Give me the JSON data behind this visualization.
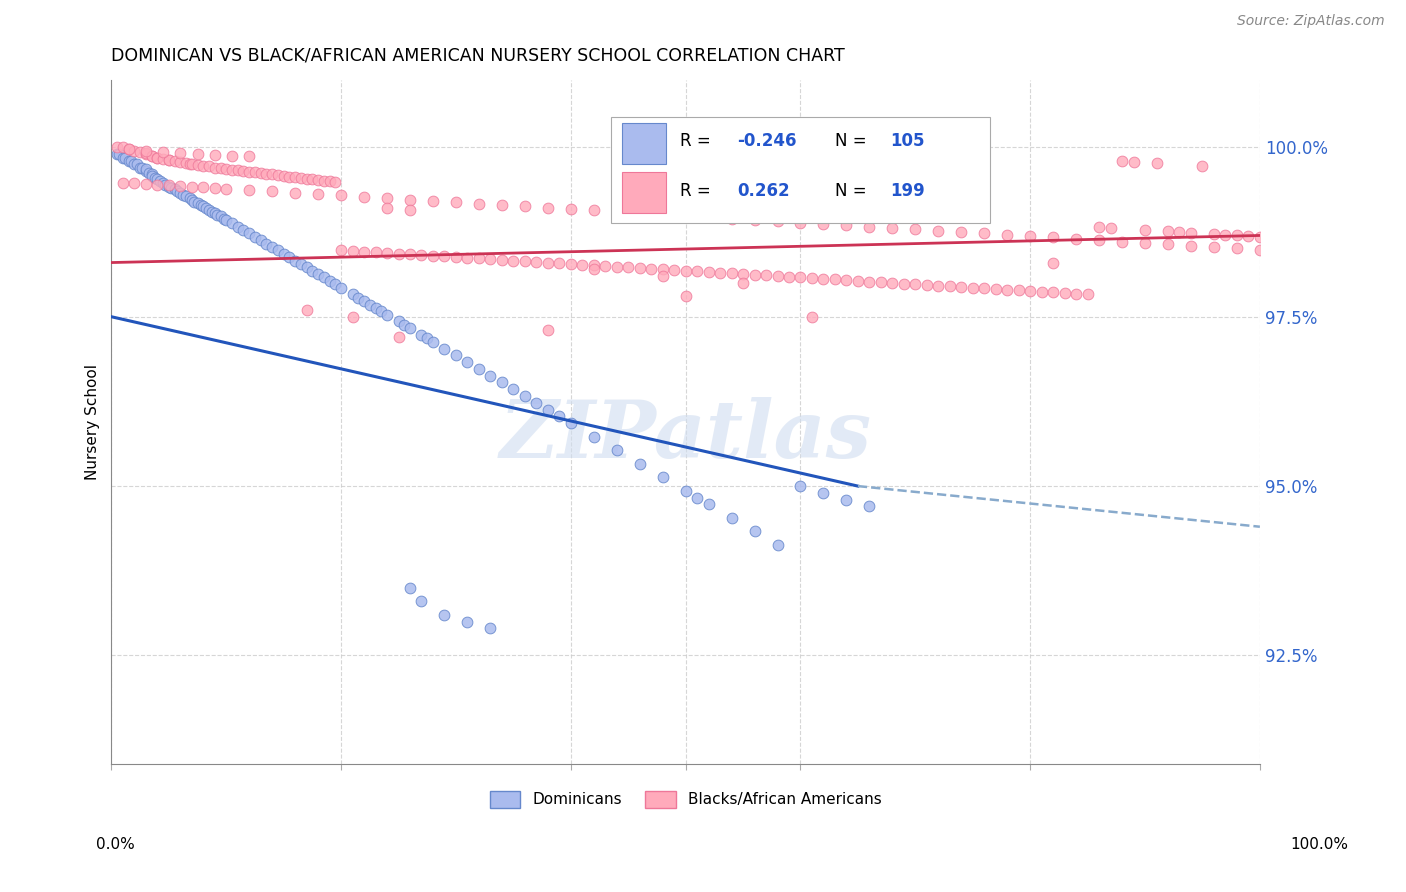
{
  "title": "DOMINICAN VS BLACK/AFRICAN AMERICAN NURSERY SCHOOL CORRELATION CHART",
  "source": "Source: ZipAtlas.com",
  "ylabel": "Nursery School",
  "watermark": "ZIPatlas",
  "blue_scatter_color": "#aabbee",
  "blue_scatter_edge": "#6688cc",
  "pink_scatter_color": "#ffaabb",
  "pink_scatter_edge": "#ee7799",
  "blue_line_color": "#2255bb",
  "blue_dash_color": "#88aacc",
  "pink_line_color": "#cc3355",
  "ytick_color": "#3366cc",
  "xtick_label_color": "#000000",
  "grid_color": "#cccccc",
  "legend_r_color": "#000000",
  "legend_val_color": "#2255cc",
  "blue_line_start_y": 0.975,
  "blue_line_end_solid_x": 0.65,
  "blue_line_end_y": 0.95,
  "blue_line_end_dashed_y": 0.944,
  "pink_line_start_y": 0.983,
  "pink_line_end_y": 0.987,
  "xmin": 0.0,
  "xmax": 1.0,
  "ymin": 0.909,
  "ymax": 1.01,
  "ytick_values": [
    0.925,
    0.95,
    0.975,
    1.0
  ],
  "ytick_labels": [
    "92.5%",
    "95.0%",
    "97.5%",
    "100.0%"
  ],
  "blue_x": [
    0.005,
    0.007,
    0.01,
    0.012,
    0.015,
    0.017,
    0.02,
    0.022,
    0.025,
    0.027,
    0.03,
    0.03,
    0.033,
    0.035,
    0.035,
    0.038,
    0.04,
    0.042,
    0.045,
    0.047,
    0.05,
    0.052,
    0.055,
    0.057,
    0.06,
    0.062,
    0.065,
    0.068,
    0.07,
    0.072,
    0.075,
    0.078,
    0.08,
    0.082,
    0.085,
    0.088,
    0.09,
    0.092,
    0.095,
    0.098,
    0.1,
    0.105,
    0.11,
    0.115,
    0.12,
    0.125,
    0.13,
    0.135,
    0.14,
    0.145,
    0.15,
    0.155,
    0.16,
    0.165,
    0.17,
    0.175,
    0.18,
    0.185,
    0.19,
    0.195,
    0.2,
    0.21,
    0.215,
    0.22,
    0.225,
    0.23,
    0.235,
    0.24,
    0.25,
    0.255,
    0.26,
    0.27,
    0.275,
    0.28,
    0.29,
    0.3,
    0.31,
    0.32,
    0.33,
    0.34,
    0.35,
    0.36,
    0.37,
    0.38,
    0.39,
    0.4,
    0.42,
    0.44,
    0.46,
    0.48,
    0.5,
    0.51,
    0.52,
    0.54,
    0.56,
    0.58,
    0.6,
    0.62,
    0.64,
    0.66,
    0.26,
    0.27,
    0.29,
    0.31,
    0.33
  ],
  "blue_y": [
    0.999,
    0.999,
    0.9985,
    0.9985,
    0.998,
    0.998,
    0.9975,
    0.9975,
    0.997,
    0.997,
    0.9965,
    0.9968,
    0.9962,
    0.996,
    0.9958,
    0.9955,
    0.9953,
    0.995,
    0.9948,
    0.9945,
    0.9942,
    0.994,
    0.9938,
    0.9935,
    0.9933,
    0.993,
    0.9928,
    0.9925,
    0.9923,
    0.992,
    0.9918,
    0.9915,
    0.9913,
    0.991,
    0.9908,
    0.9905,
    0.9903,
    0.99,
    0.9898,
    0.9895,
    0.9893,
    0.9888,
    0.9883,
    0.9878,
    0.9873,
    0.9868,
    0.9863,
    0.9858,
    0.9853,
    0.9848,
    0.9843,
    0.9838,
    0.9833,
    0.9828,
    0.9823,
    0.9818,
    0.9813,
    0.9808,
    0.9803,
    0.9798,
    0.9793,
    0.9783,
    0.9778,
    0.9773,
    0.9768,
    0.9763,
    0.9758,
    0.9753,
    0.9743,
    0.9738,
    0.9733,
    0.9723,
    0.9718,
    0.9713,
    0.9703,
    0.9693,
    0.9683,
    0.9673,
    0.9663,
    0.9653,
    0.9643,
    0.9633,
    0.9623,
    0.9613,
    0.9603,
    0.9593,
    0.9573,
    0.9553,
    0.9533,
    0.9513,
    0.9493,
    0.9483,
    0.9473,
    0.9453,
    0.9433,
    0.9413,
    0.95,
    0.949,
    0.948,
    0.947,
    0.935,
    0.933,
    0.931,
    0.93,
    0.929
  ],
  "pink_x": [
    0.005,
    0.01,
    0.015,
    0.02,
    0.025,
    0.03,
    0.03,
    0.035,
    0.035,
    0.04,
    0.04,
    0.045,
    0.05,
    0.05,
    0.055,
    0.06,
    0.065,
    0.068,
    0.07,
    0.075,
    0.08,
    0.085,
    0.09,
    0.095,
    0.1,
    0.105,
    0.11,
    0.115,
    0.12,
    0.125,
    0.13,
    0.135,
    0.14,
    0.145,
    0.15,
    0.155,
    0.16,
    0.165,
    0.17,
    0.175,
    0.18,
    0.185,
    0.19,
    0.195,
    0.2,
    0.21,
    0.22,
    0.23,
    0.24,
    0.25,
    0.26,
    0.27,
    0.28,
    0.29,
    0.3,
    0.31,
    0.32,
    0.33,
    0.34,
    0.35,
    0.36,
    0.37,
    0.38,
    0.39,
    0.4,
    0.41,
    0.42,
    0.43,
    0.44,
    0.45,
    0.46,
    0.47,
    0.48,
    0.49,
    0.5,
    0.51,
    0.52,
    0.53,
    0.54,
    0.55,
    0.56,
    0.57,
    0.58,
    0.59,
    0.6,
    0.61,
    0.62,
    0.63,
    0.64,
    0.65,
    0.66,
    0.67,
    0.68,
    0.69,
    0.7,
    0.71,
    0.72,
    0.73,
    0.74,
    0.75,
    0.76,
    0.77,
    0.78,
    0.79,
    0.8,
    0.81,
    0.82,
    0.83,
    0.84,
    0.85,
    0.86,
    0.87,
    0.88,
    0.89,
    0.9,
    0.91,
    0.92,
    0.93,
    0.94,
    0.95,
    0.96,
    0.97,
    0.98,
    0.99,
    1.0,
    0.01,
    0.02,
    0.03,
    0.04,
    0.05,
    0.06,
    0.07,
    0.08,
    0.09,
    0.1,
    0.12,
    0.14,
    0.16,
    0.18,
    0.2,
    0.22,
    0.24,
    0.26,
    0.28,
    0.3,
    0.32,
    0.34,
    0.36,
    0.38,
    0.4,
    0.42,
    0.44,
    0.46,
    0.48,
    0.5,
    0.52,
    0.54,
    0.56,
    0.58,
    0.6,
    0.62,
    0.64,
    0.66,
    0.68,
    0.7,
    0.72,
    0.74,
    0.76,
    0.78,
    0.8,
    0.82,
    0.84,
    0.86,
    0.88,
    0.9,
    0.92,
    0.94,
    0.96,
    0.98,
    1.0,
    0.015,
    0.03,
    0.045,
    0.06,
    0.075,
    0.09,
    0.105,
    0.12,
    0.24,
    0.26,
    0.5,
    0.25,
    0.21,
    0.38,
    0.55,
    0.61,
    0.42,
    0.17,
    0.48,
    0.82
  ],
  "pink_y": [
    1.0,
    1.0,
    0.9997,
    0.9995,
    0.9993,
    0.999,
    0.9992,
    0.9988,
    0.9987,
    0.9985,
    0.9984,
    0.9983,
    0.9981,
    0.9982,
    0.998,
    0.9978,
    0.9977,
    0.9976,
    0.9975,
    0.9974,
    0.9973,
    0.9972,
    0.997,
    0.9969,
    0.9968,
    0.9967,
    0.9966,
    0.9965,
    0.9964,
    0.9963,
    0.9962,
    0.9961,
    0.996,
    0.9959,
    0.9958,
    0.9957,
    0.9956,
    0.9955,
    0.9954,
    0.9953,
    0.9952,
    0.9951,
    0.995,
    0.9949,
    0.9848,
    0.9847,
    0.9846,
    0.9845,
    0.9844,
    0.9843,
    0.9842,
    0.9841,
    0.984,
    0.9839,
    0.9838,
    0.9837,
    0.9836,
    0.9835,
    0.9834,
    0.9833,
    0.9832,
    0.9831,
    0.983,
    0.9829,
    0.9828,
    0.9827,
    0.9826,
    0.9825,
    0.9824,
    0.9823,
    0.9822,
    0.9821,
    0.982,
    0.9819,
    0.9818,
    0.9817,
    0.9816,
    0.9815,
    0.9814,
    0.9813,
    0.9812,
    0.9811,
    0.981,
    0.9809,
    0.9808,
    0.9807,
    0.9806,
    0.9805,
    0.9804,
    0.9803,
    0.9802,
    0.9801,
    0.98,
    0.9799,
    0.9798,
    0.9797,
    0.9796,
    0.9795,
    0.9794,
    0.9793,
    0.9792,
    0.9791,
    0.979,
    0.9789,
    0.9788,
    0.9787,
    0.9786,
    0.9785,
    0.9784,
    0.9783,
    0.9882,
    0.9881,
    0.998,
    0.9979,
    0.9878,
    0.9977,
    0.9876,
    0.9875,
    0.9874,
    0.9973,
    0.9872,
    0.9871,
    0.987,
    0.9869,
    0.9868,
    0.9948,
    0.9947,
    0.9946,
    0.9945,
    0.9944,
    0.9943,
    0.9942,
    0.9941,
    0.994,
    0.9939,
    0.9937,
    0.9935,
    0.9933,
    0.9931,
    0.9929,
    0.9927,
    0.9925,
    0.9923,
    0.9921,
    0.9919,
    0.9917,
    0.9915,
    0.9913,
    0.9911,
    0.9909,
    0.9907,
    0.9905,
    0.9903,
    0.9901,
    0.9899,
    0.9897,
    0.9895,
    0.9893,
    0.9891,
    0.9889,
    0.9887,
    0.9885,
    0.9883,
    0.9881,
    0.9879,
    0.9877,
    0.9875,
    0.9873,
    0.9871,
    0.9869,
    0.9867,
    0.9865,
    0.9863,
    0.9861,
    0.9859,
    0.9857,
    0.9855,
    0.9853,
    0.9851,
    0.9849,
    0.9998,
    0.9995,
    0.9993,
    0.9991,
    0.999,
    0.9989,
    0.9988,
    0.9987,
    0.991,
    0.9908,
    0.978,
    0.972,
    0.975,
    0.973,
    0.98,
    0.975,
    0.982,
    0.976,
    0.981,
    0.983
  ]
}
